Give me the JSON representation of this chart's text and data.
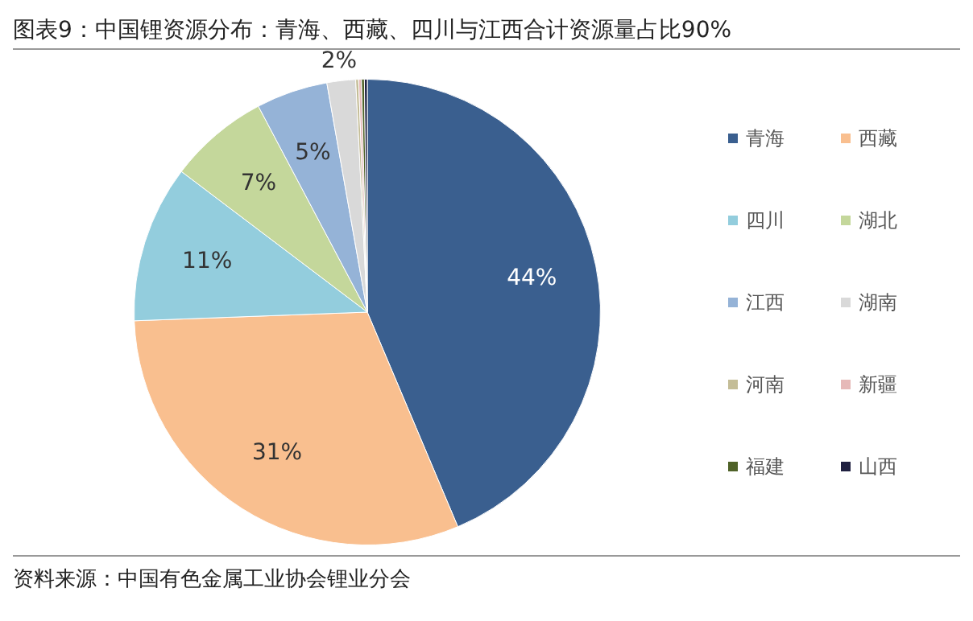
{
  "chart_data": {
    "type": "pie",
    "title": "图表9：中国锂资源分布：青海、西藏、四川与江西合计资源量占比90%",
    "categories": [
      "青海",
      "西藏",
      "四川",
      "湖北",
      "江西",
      "湖南",
      "河南",
      "新疆",
      "福建",
      "山西"
    ],
    "values": [
      44,
      31,
      11,
      7,
      5,
      2,
      0.2,
      0.2,
      0.2,
      0.2
    ],
    "value_labels": [
      "44%",
      "31%",
      "11%",
      "7%",
      "5%",
      "2%",
      null,
      null,
      null,
      null
    ],
    "colors": [
      "#3a5f8f",
      "#f9bf8f",
      "#93cddd",
      "#c4d79b",
      "#95b3d7",
      "#d9d9d9",
      "#c4bd97",
      "#e6b9b8",
      "#4f6228",
      "#1f2040"
    ],
    "legend": "right",
    "annotations": [
      "资料来源：中国有色金属工业协会锂业分会"
    ]
  }
}
